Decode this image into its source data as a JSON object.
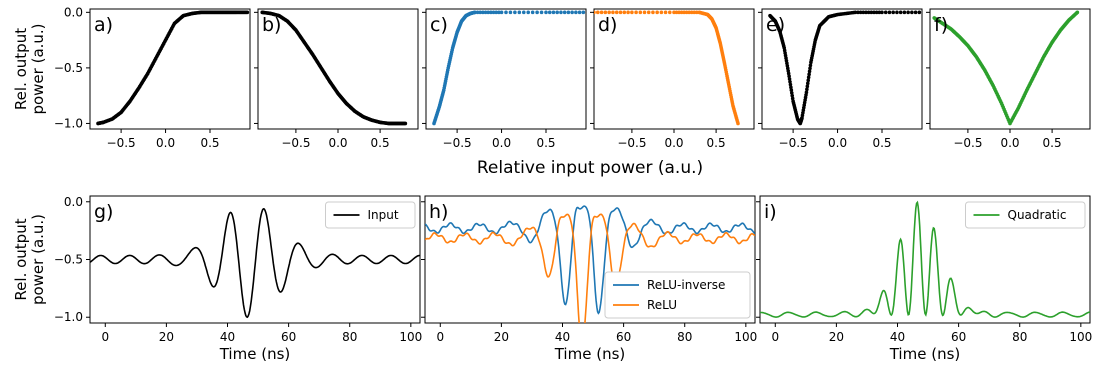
{
  "chart_data": [
    {
      "id": "a",
      "panel_label": "a)",
      "type": "scatter",
      "color": "#000000",
      "ylabel_lines": [
        "Rel. output",
        "power (a.u.)"
      ],
      "xlabel": "",
      "xlim": [
        -0.85,
        0.95
      ],
      "ylim": [
        -1.05,
        0.03
      ],
      "xticks": [
        -0.5,
        0.0,
        0.5
      ],
      "xtick_labels": [
        "−0.5",
        "0.0",
        "0.5"
      ],
      "yticks": [
        0.0,
        -0.5,
        -1.0
      ],
      "ytick_labels": [
        "0.0",
        "−0.5",
        "−1.0"
      ],
      "series": [
        {
          "x": [
            -0.76,
            -0.7,
            -0.6,
            -0.5,
            -0.4,
            -0.3,
            -0.2,
            -0.1,
            0.0,
            0.1,
            0.2,
            0.3,
            0.4,
            0.5,
            0.6,
            0.7,
            0.8,
            0.92
          ],
          "y": [
            -1.0,
            -0.99,
            -0.96,
            -0.9,
            -0.8,
            -0.68,
            -0.55,
            -0.4,
            -0.25,
            -0.1,
            -0.03,
            -0.01,
            0.0,
            0.0,
            0.0,
            0.0,
            0.0,
            0.0
          ]
        }
      ]
    },
    {
      "id": "b",
      "panel_label": "b)",
      "type": "scatter",
      "color": "#000000",
      "xlabel": "",
      "xlim": [
        -0.95,
        0.95
      ],
      "ylim": [
        -1.05,
        0.03
      ],
      "xticks": [
        -0.5,
        0.0,
        0.5
      ],
      "xtick_labels": [
        "−0.5",
        "0.0",
        "0.5"
      ],
      "yticks": [
        0.0,
        -0.5,
        -1.0
      ],
      "ytick_labels": [],
      "series": [
        {
          "x": [
            -0.9,
            -0.8,
            -0.7,
            -0.6,
            -0.5,
            -0.4,
            -0.3,
            -0.2,
            -0.1,
            0.0,
            0.1,
            0.2,
            0.3,
            0.4,
            0.5,
            0.6,
            0.7,
            0.8
          ],
          "y": [
            0.0,
            -0.01,
            -0.03,
            -0.08,
            -0.16,
            -0.27,
            -0.38,
            -0.5,
            -0.62,
            -0.73,
            -0.82,
            -0.89,
            -0.94,
            -0.97,
            -0.99,
            -1.0,
            -1.0,
            -1.0
          ]
        }
      ]
    },
    {
      "id": "c",
      "panel_label": "c)",
      "type": "scatter",
      "color": "#1f77b4",
      "xlabel": "",
      "xlim": [
        -0.85,
        0.95
      ],
      "ylim": [
        -1.05,
        0.03
      ],
      "xticks": [
        -0.5,
        0.0,
        0.5
      ],
      "xtick_labels": [
        "−0.5",
        "0.0",
        "0.5"
      ],
      "yticks": [
        0.0,
        -0.5,
        -1.0
      ],
      "ytick_labels": [],
      "series": [
        {
          "x": [
            -0.76,
            -0.7,
            -0.65,
            -0.6,
            -0.55,
            -0.5,
            -0.45,
            -0.4,
            -0.35,
            -0.3,
            0.0,
            0.5,
            0.92
          ],
          "y": [
            -1.0,
            -0.85,
            -0.7,
            -0.5,
            -0.32,
            -0.18,
            -0.08,
            -0.03,
            -0.01,
            0.0,
            0.0,
            0.0,
            0.0
          ]
        }
      ]
    },
    {
      "id": "d",
      "panel_label": "d)",
      "type": "scatter",
      "color": "#ff7f0e",
      "xlabel": "Relative input power (a.u.)",
      "xlim": [
        -0.95,
        0.95
      ],
      "ylim": [
        -1.05,
        0.03
      ],
      "xticks": [
        -0.5,
        0.0,
        0.5
      ],
      "xtick_labels": [
        "−0.5",
        "0.0",
        "0.5"
      ],
      "yticks": [
        0.0,
        -0.5,
        -1.0
      ],
      "ytick_labels": [],
      "series": [
        {
          "x": [
            -0.95,
            -0.5,
            0.0,
            0.3,
            0.4,
            0.45,
            0.5,
            0.55,
            0.6,
            0.65,
            0.7,
            0.76
          ],
          "y": [
            0.0,
            0.0,
            0.0,
            0.0,
            -0.02,
            -0.06,
            -0.14,
            -0.28,
            -0.46,
            -0.65,
            -0.84,
            -1.0
          ]
        }
      ]
    },
    {
      "id": "e",
      "panel_label": "e)",
      "type": "scatter",
      "color": "#000000",
      "xlabel": "",
      "xlim": [
        -0.85,
        0.95
      ],
      "ylim": [
        -1.05,
        0.03
      ],
      "xticks": [
        -0.5,
        0.0,
        0.5
      ],
      "xtick_labels": [
        "−0.5",
        "0.0",
        "0.5"
      ],
      "yticks": [
        0.0,
        -0.5,
        -1.0
      ],
      "ytick_labels": [],
      "series": [
        {
          "x": [
            -0.76,
            -0.7,
            -0.65,
            -0.6,
            -0.55,
            -0.5,
            -0.45,
            -0.42,
            -0.4,
            -0.35,
            -0.3,
            -0.25,
            -0.2,
            -0.1,
            0.0,
            0.2,
            0.5,
            0.92
          ],
          "y": [
            -0.03,
            -0.08,
            -0.17,
            -0.32,
            -0.55,
            -0.8,
            -0.96,
            -1.0,
            -0.95,
            -0.72,
            -0.45,
            -0.25,
            -0.12,
            -0.04,
            -0.02,
            0.0,
            0.0,
            0.0
          ]
        }
      ]
    },
    {
      "id": "f",
      "panel_label": "f)",
      "type": "scatter",
      "color": "#2ca02c",
      "xlabel": "",
      "xlim": [
        -0.95,
        0.95
      ],
      "ylim": [
        -1.05,
        0.03
      ],
      "xticks": [
        -0.5,
        0.0,
        0.5
      ],
      "xtick_labels": [
        "−0.5",
        "0.0",
        "0.5"
      ],
      "yticks": [
        0.0,
        -0.5,
        -1.0
      ],
      "ytick_labels": [],
      "series": [
        {
          "x": [
            -0.9,
            -0.8,
            -0.7,
            -0.6,
            -0.5,
            -0.4,
            -0.3,
            -0.2,
            -0.1,
            0.0,
            0.1,
            0.2,
            0.3,
            0.4,
            0.5,
            0.6,
            0.7,
            0.8
          ],
          "y": [
            -0.05,
            -0.1,
            -0.15,
            -0.22,
            -0.3,
            -0.4,
            -0.52,
            -0.66,
            -0.82,
            -1.0,
            -0.86,
            -0.7,
            -0.55,
            -0.4,
            -0.27,
            -0.16,
            -0.07,
            0.0
          ]
        }
      ]
    },
    {
      "id": "g",
      "panel_label": "g)",
      "type": "line",
      "ylabel_lines": [
        "Rel. output",
        "power (a.u.)"
      ],
      "xlabel": "Time (ns)",
      "xlim": [
        -5,
        103
      ],
      "ylim": [
        -1.05,
        0.05
      ],
      "xticks": [
        0,
        20,
        40,
        60,
        80,
        100
      ],
      "xtick_labels": [
        "0",
        "20",
        "40",
        "60",
        "80",
        "100"
      ],
      "yticks": [
        0.0,
        -0.5,
        -1.0
      ],
      "ytick_labels": [
        "0.0",
        "−0.5",
        "−1.0"
      ],
      "legend": {
        "position": "top-right",
        "entries": [
          "Input"
        ]
      },
      "series": [
        {
          "name": "Input",
          "color": "#000000",
          "kind": "input"
        }
      ]
    },
    {
      "id": "h",
      "panel_label": "h)",
      "type": "line",
      "xlabel": "Time (ns)",
      "xlim": [
        -5,
        103
      ],
      "ylim": [
        -1.05,
        0.05
      ],
      "xticks": [
        0,
        20,
        40,
        60,
        80,
        100
      ],
      "xtick_labels": [
        "0",
        "20",
        "40",
        "60",
        "80",
        "100"
      ],
      "yticks": [
        0.0,
        -0.5,
        -1.0
      ],
      "ytick_labels": [],
      "legend": {
        "position": "bottom-right",
        "entries": [
          "ReLU-inverse",
          "ReLU"
        ]
      },
      "series": [
        {
          "name": "ReLU-inverse",
          "color": "#1f77b4",
          "kind": "relu-inverse"
        },
        {
          "name": "ReLU",
          "color": "#ff7f0e",
          "kind": "relu"
        }
      ]
    },
    {
      "id": "i",
      "panel_label": "i)",
      "type": "line",
      "xlabel": "Time (ns)",
      "xlim": [
        -5,
        103
      ],
      "ylim": [
        -1.05,
        0.05
      ],
      "xticks": [
        0,
        20,
        40,
        60,
        80,
        100
      ],
      "xtick_labels": [
        "0",
        "20",
        "40",
        "60",
        "80",
        "100"
      ],
      "yticks": [
        0.0,
        -0.5,
        -1.0
      ],
      "ytick_labels": [],
      "legend": {
        "position": "top-right",
        "entries": [
          "Quadratic"
        ]
      },
      "series": [
        {
          "name": "Quadratic",
          "color": "#2ca02c",
          "kind": "quadratic"
        }
      ]
    }
  ]
}
